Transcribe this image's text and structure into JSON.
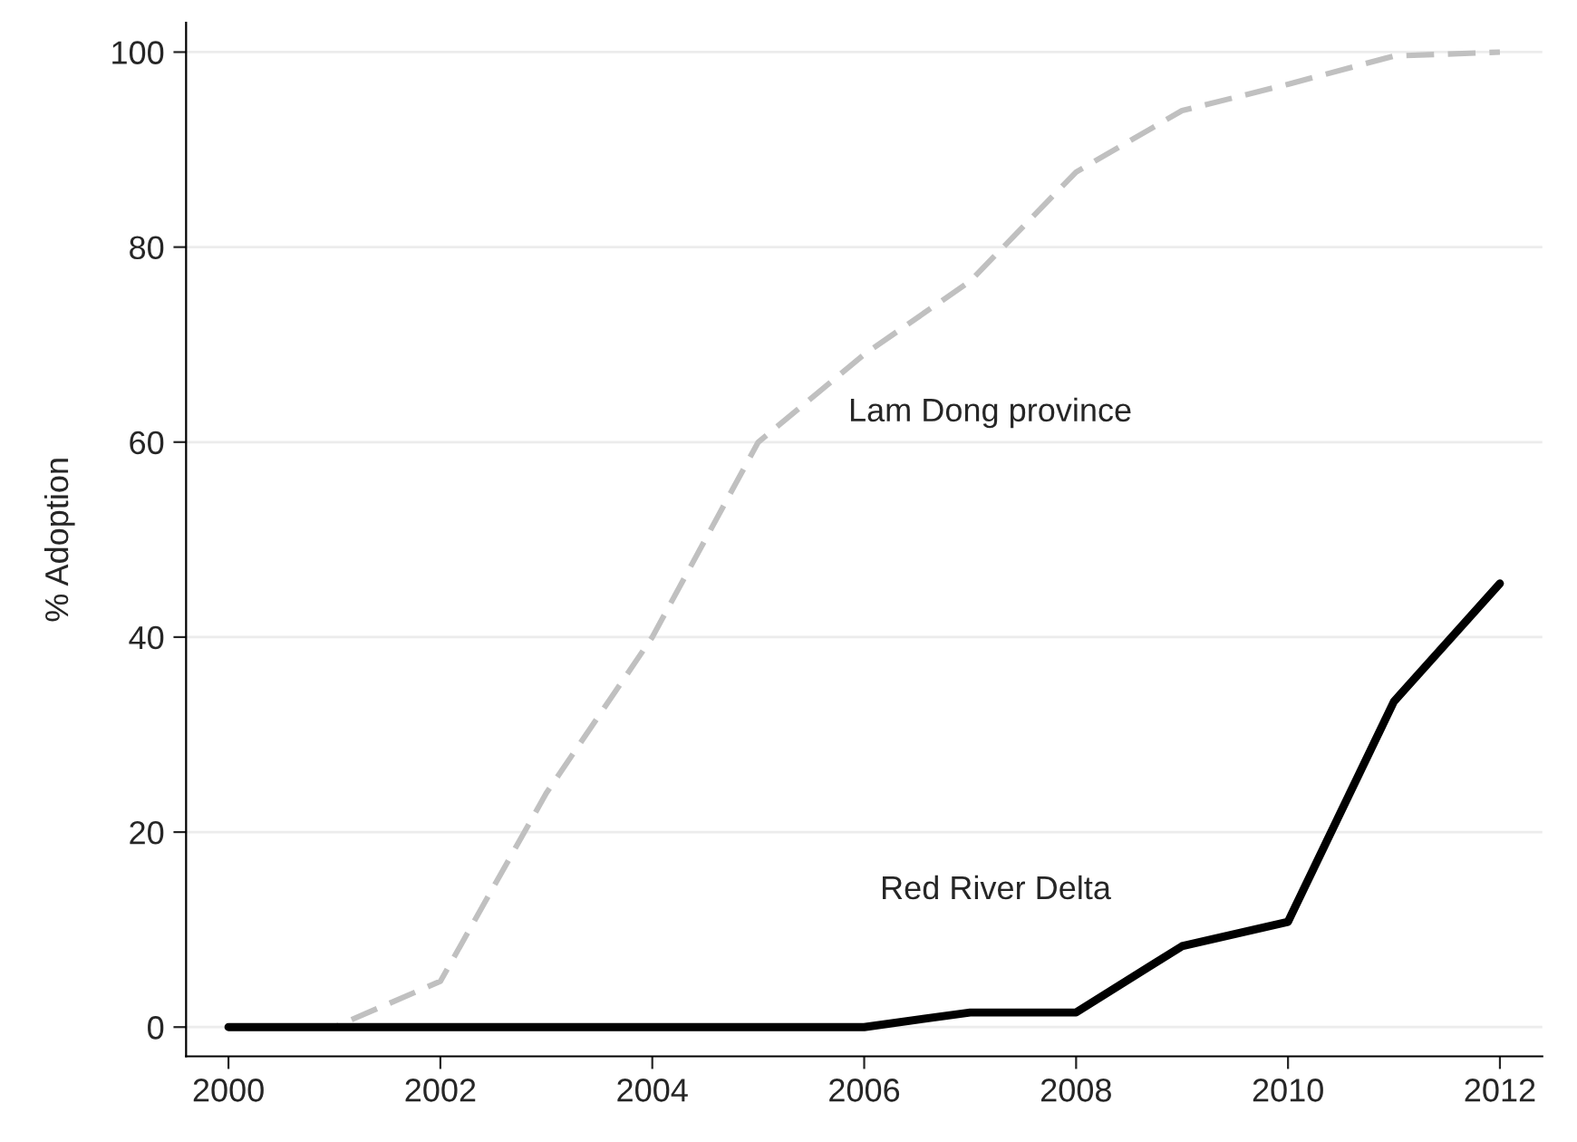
{
  "chart_data": {
    "type": "line",
    "ylabel": "% Adoption",
    "x": [
      2000,
      2001,
      2002,
      2003,
      2004,
      2005,
      2006,
      2007,
      2008,
      2009,
      2010,
      2011,
      2012
    ],
    "series": [
      {
        "name": "Lam Dong province",
        "color": "#c0c0c0",
        "line_style": "dashed",
        "values": [
          0,
          0,
          4.7,
          24,
          40,
          60,
          69,
          76.5,
          87.7,
          94,
          96.7,
          99.6,
          100
        ]
      },
      {
        "name": "Red River Delta",
        "color": "#000000",
        "line_style": "solid",
        "values": [
          0,
          0,
          0,
          0,
          0,
          0,
          0,
          1.5,
          1.5,
          8.3,
          10.8,
          33.4,
          45.5
        ]
      }
    ],
    "xlim": [
      1999.6,
      2012.4
    ],
    "xticks": [
      2000,
      2002,
      2004,
      2006,
      2008,
      2010,
      2012
    ],
    "ylim": [
      -3,
      103
    ],
    "yticks": [
      0,
      20,
      40,
      60,
      80,
      100
    ],
    "grid": "y",
    "legend": false
  }
}
